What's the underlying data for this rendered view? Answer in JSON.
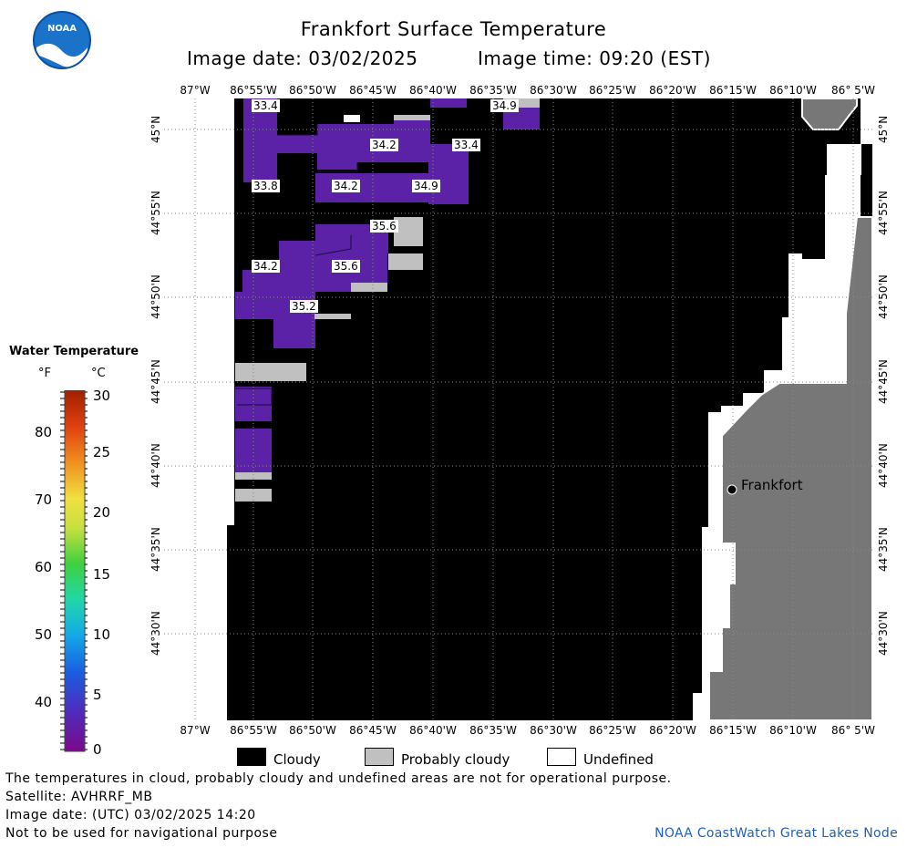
{
  "header": {
    "title": "Frankfort Surface Temperature",
    "image_date_line": "Image date: 03/02/2025",
    "image_time_line": "Image time: 09:20 (EST)"
  },
  "logo": {
    "text": "NOAA"
  },
  "legend": {
    "title": "Water Temperature",
    "unit_f": "°F",
    "unit_c": "°C",
    "f_ticks": [
      "80",
      "70",
      "60",
      "50",
      "40"
    ],
    "c_ticks": [
      "30",
      "25",
      "20",
      "15",
      "10",
      "5",
      "0"
    ]
  },
  "axes": {
    "lon_labels": [
      "87°W",
      "86°55'W",
      "86°50'W",
      "86°45'W",
      "86°40'W",
      "86°35'W",
      "86°30'W",
      "86°25'W",
      "86°20'W",
      "86°15'W",
      "86°10'W",
      "86° 5'W"
    ],
    "lat_labels": [
      "45°N",
      "44°55'N",
      "44°50'N",
      "44°45'N",
      "44°40'N",
      "44°35'N",
      "44°30'N"
    ]
  },
  "map": {
    "temperature_labels": [
      "33.4",
      "34.9",
      "34.2",
      "33.4",
      "33.8",
      "34.2",
      "34.9",
      "35.6",
      "34.2",
      "35.6",
      "35.2"
    ],
    "place_label": "Frankfort",
    "colors": {
      "cloudy": "#000000",
      "probably_cloudy": "#c0c0c0",
      "land": "#777777",
      "water_temp": "#5b22a8"
    }
  },
  "key": {
    "cloudy": "Cloudy",
    "probably_cloudy": "Probably cloudy",
    "undefined": "Undefined"
  },
  "footer": {
    "note": "The temperatures in cloud, probably cloudy and undefined areas are not for operational purpose.",
    "satellite": "Satellite: AVHRRF_MB",
    "utc_date": "Image date: (UTC) 03/02/2025  14:20",
    "nav_warning": "Not to be used for navigational purpose",
    "credit": "NOAA CoastWatch Great Lakes Node"
  }
}
